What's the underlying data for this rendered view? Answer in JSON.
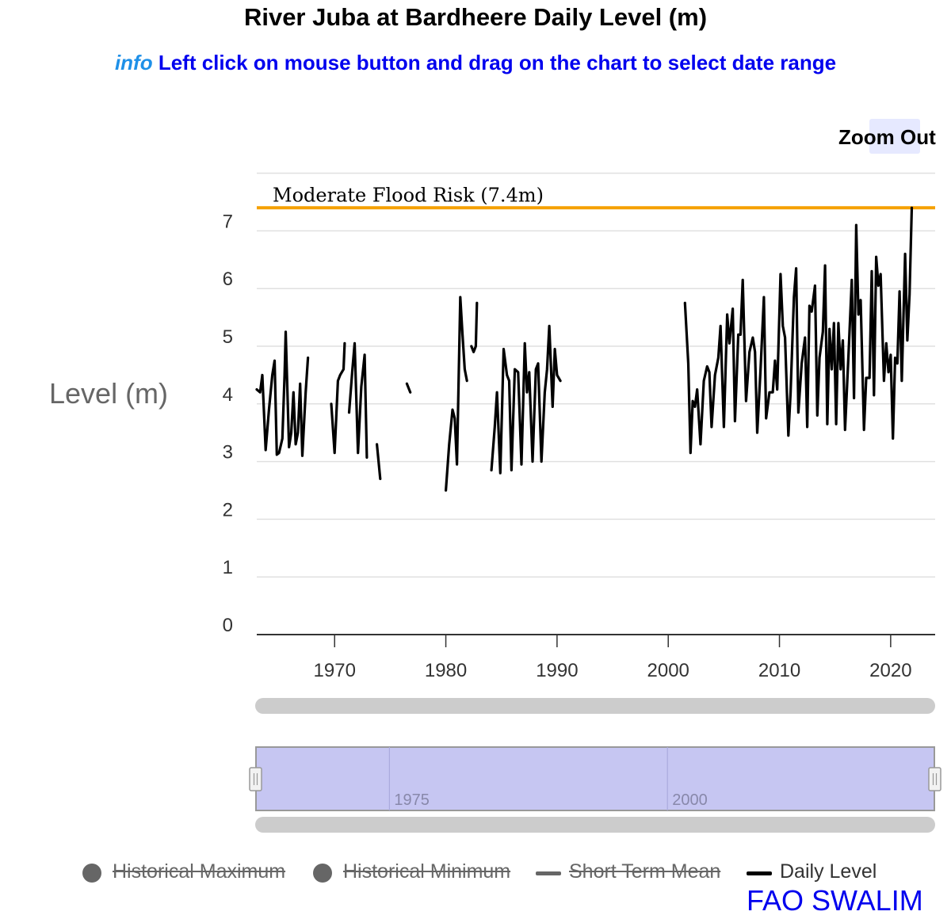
{
  "header": {
    "title": "River Juba at Bardheere Daily Level (m)",
    "info_word": "info",
    "info_text": "Left click on mouse button and drag on the chart to select date range",
    "zoom_out_label": "Zoom Out"
  },
  "legend": {
    "items": [
      {
        "label": "Historical Maximum",
        "marker": "circle",
        "enabled": false,
        "color": "#666666"
      },
      {
        "label": "Historical Minimum",
        "marker": "circle",
        "enabled": false,
        "color": "#666666"
      },
      {
        "label": "Short Term Mean",
        "marker": "line",
        "enabled": false,
        "color": "#666666"
      },
      {
        "label": "Daily Level",
        "marker": "line",
        "enabled": true,
        "color": "#000000"
      }
    ]
  },
  "credit": "FAO SWALIM",
  "chart_data": {
    "type": "line",
    "title": "River Juba at Bardheere Daily Level (m)",
    "ylabel": "Level (m)",
    "xlabel": "",
    "xlim": [
      1963.0,
      2024.0
    ],
    "ylim": [
      0,
      8
    ],
    "x_ticks": [
      1970,
      1980,
      1990,
      2000,
      2010,
      2020
    ],
    "y_ticks": [
      0,
      1,
      2,
      3,
      4,
      5,
      6,
      7
    ],
    "grid": true,
    "plot_line": {
      "label": "Moderate Flood Risk (7.4m)",
      "value": 7.4,
      "color": "#f5a000"
    },
    "navigator": {
      "ticks": [
        1975,
        2000
      ],
      "range": [
        1963.0,
        2024.0
      ],
      "fill": "#c6c6f2"
    },
    "series": [
      {
        "name": "Daily Level",
        "color": "#000000",
        "segments": [
          [
            [
              1963.0,
              4.25
            ],
            [
              1963.3,
              4.2
            ],
            [
              1963.5,
              4.5
            ],
            [
              1963.8,
              3.2
            ],
            [
              1964.1,
              3.9
            ],
            [
              1964.4,
              4.5
            ],
            [
              1964.6,
              4.75
            ],
            [
              1964.8,
              3.12
            ],
            [
              1965.0,
              3.15
            ],
            [
              1965.3,
              3.4
            ],
            [
              1965.5,
              4.5
            ],
            [
              1965.6,
              5.25
            ],
            [
              1965.9,
              3.25
            ],
            [
              1966.1,
              3.5
            ],
            [
              1966.3,
              4.2
            ],
            [
              1966.5,
              3.3
            ],
            [
              1966.7,
              3.5
            ],
            [
              1966.9,
              4.35
            ],
            [
              1967.1,
              3.1
            ],
            [
              1967.4,
              4.2
            ],
            [
              1967.6,
              4.8
            ]
          ],
          [
            [
              1969.7,
              4.0
            ],
            [
              1970.0,
              3.15
            ],
            [
              1970.3,
              4.4
            ],
            [
              1970.5,
              4.5
            ],
            [
              1970.8,
              4.6
            ],
            [
              1970.9,
              5.05
            ]
          ],
          [
            [
              1971.3,
              3.85
            ],
            [
              1971.6,
              4.6
            ],
            [
              1971.8,
              5.05
            ],
            [
              1972.1,
              3.15
            ],
            [
              1972.4,
              4.3
            ],
            [
              1972.7,
              4.85
            ],
            [
              1972.9,
              3.07
            ]
          ],
          [
            [
              1973.8,
              3.3
            ],
            [
              1974.1,
              2.7
            ]
          ],
          [
            [
              1976.5,
              4.35
            ],
            [
              1976.8,
              4.2
            ]
          ],
          [
            [
              1980.0,
              2.5
            ],
            [
              1980.3,
              3.3
            ],
            [
              1980.6,
              3.9
            ],
            [
              1980.8,
              3.75
            ],
            [
              1981.0,
              2.95
            ],
            [
              1981.3,
              5.85
            ],
            [
              1981.5,
              5.2
            ],
            [
              1981.7,
              4.6
            ],
            [
              1981.9,
              4.4
            ]
          ],
          [
            [
              1982.3,
              5.0
            ],
            [
              1982.5,
              4.9
            ],
            [
              1982.7,
              5.0
            ],
            [
              1982.8,
              5.75
            ]
          ],
          [
            [
              1984.1,
              2.85
            ],
            [
              1984.4,
              3.6
            ],
            [
              1984.6,
              4.2
            ],
            [
              1984.9,
              2.8
            ],
            [
              1985.2,
              4.95
            ],
            [
              1985.5,
              4.5
            ],
            [
              1985.7,
              4.4
            ],
            [
              1985.9,
              2.85
            ],
            [
              1986.2,
              4.6
            ],
            [
              1986.5,
              4.55
            ],
            [
              1986.8,
              2.95
            ],
            [
              1987.1,
              5.05
            ],
            [
              1987.3,
              4.2
            ],
            [
              1987.5,
              4.55
            ],
            [
              1987.8,
              3.0
            ],
            [
              1988.1,
              4.6
            ],
            [
              1988.3,
              4.7
            ],
            [
              1988.6,
              3.0
            ],
            [
              1988.9,
              4.2
            ],
            [
              1989.1,
              4.6
            ],
            [
              1989.3,
              5.35
            ],
            [
              1989.6,
              3.95
            ],
            [
              1989.8,
              4.95
            ],
            [
              1990.0,
              4.5
            ],
            [
              1990.3,
              4.4
            ]
          ],
          [
            [
              2001.5,
              5.75
            ],
            [
              2001.8,
              4.7
            ],
            [
              2002.0,
              3.15
            ],
            [
              2002.2,
              4.05
            ],
            [
              2002.4,
              3.95
            ],
            [
              2002.6,
              4.25
            ],
            [
              2002.9,
              3.3
            ],
            [
              2003.2,
              4.4
            ],
            [
              2003.5,
              4.65
            ],
            [
              2003.7,
              4.55
            ],
            [
              2003.9,
              3.6
            ],
            [
              2004.2,
              4.5
            ],
            [
              2004.5,
              4.8
            ],
            [
              2004.7,
              5.35
            ],
            [
              2005.0,
              3.6
            ],
            [
              2005.3,
              5.55
            ],
            [
              2005.5,
              5.05
            ],
            [
              2005.8,
              5.65
            ],
            [
              2006.0,
              3.7
            ],
            [
              2006.3,
              5.2
            ],
            [
              2006.5,
              5.2
            ],
            [
              2006.7,
              6.15
            ],
            [
              2007.0,
              4.05
            ],
            [
              2007.3,
              4.9
            ],
            [
              2007.6,
              5.15
            ],
            [
              2007.8,
              4.9
            ],
            [
              2008.0,
              3.5
            ],
            [
              2008.3,
              4.6
            ],
            [
              2008.6,
              5.85
            ],
            [
              2008.8,
              3.75
            ],
            [
              2009.1,
              4.2
            ],
            [
              2009.4,
              4.2
            ],
            [
              2009.6,
              4.75
            ],
            [
              2009.8,
              4.25
            ],
            [
              2010.1,
              6.25
            ],
            [
              2010.3,
              5.35
            ],
            [
              2010.5,
              5.15
            ],
            [
              2010.8,
              3.45
            ],
            [
              2011.0,
              4.2
            ],
            [
              2011.3,
              5.85
            ],
            [
              2011.5,
              6.35
            ],
            [
              2011.7,
              3.85
            ],
            [
              2012.0,
              4.7
            ],
            [
              2012.3,
              5.15
            ],
            [
              2012.5,
              3.6
            ],
            [
              2012.7,
              5.7
            ],
            [
              2012.9,
              5.6
            ],
            [
              2013.2,
              6.05
            ],
            [
              2013.4,
              3.8
            ],
            [
              2013.6,
              4.8
            ],
            [
              2013.9,
              5.25
            ],
            [
              2014.1,
              6.4
            ],
            [
              2014.3,
              3.65
            ],
            [
              2014.5,
              5.3
            ],
            [
              2014.7,
              4.6
            ],
            [
              2014.9,
              5.4
            ],
            [
              2015.1,
              3.65
            ],
            [
              2015.3,
              5.4
            ],
            [
              2015.5,
              4.6
            ],
            [
              2015.7,
              5.1
            ],
            [
              2015.9,
              3.55
            ],
            [
              2016.2,
              4.8
            ],
            [
              2016.5,
              6.15
            ],
            [
              2016.7,
              4.1
            ],
            [
              2016.9,
              7.1
            ],
            [
              2017.1,
              5.55
            ],
            [
              2017.3,
              5.8
            ],
            [
              2017.6,
              3.55
            ],
            [
              2017.8,
              4.45
            ],
            [
              2018.1,
              4.45
            ],
            [
              2018.3,
              6.3
            ],
            [
              2018.5,
              4.15
            ],
            [
              2018.7,
              6.55
            ],
            [
              2018.9,
              6.05
            ],
            [
              2019.1,
              6.25
            ],
            [
              2019.4,
              4.4
            ],
            [
              2019.6,
              5.05
            ],
            [
              2019.8,
              4.55
            ],
            [
              2020.0,
              4.85
            ],
            [
              2020.2,
              3.4
            ],
            [
              2020.4,
              4.8
            ],
            [
              2020.6,
              4.7
            ],
            [
              2020.8,
              5.95
            ],
            [
              2021.0,
              4.4
            ],
            [
              2021.3,
              6.6
            ],
            [
              2021.5,
              5.1
            ],
            [
              2021.7,
              5.9
            ],
            [
              2021.9,
              7.4
            ]
          ]
        ]
      }
    ]
  }
}
